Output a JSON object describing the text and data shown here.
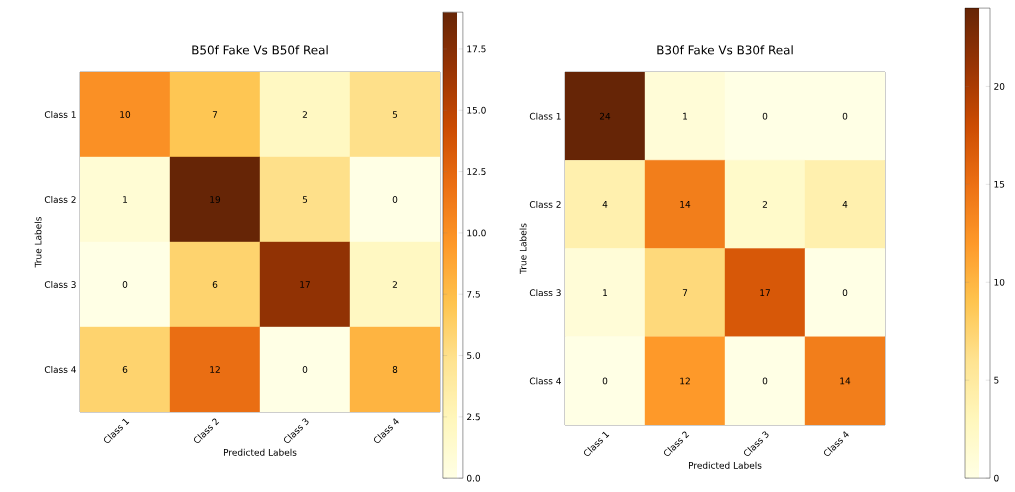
{
  "chart_data": [
    {
      "type": "heatmap",
      "title": "B50f Fake Vs B50f Real",
      "xlabel": "Predicted Labels",
      "ylabel": "True Labels",
      "categories": [
        "Class 1",
        "Class 2",
        "Class 3",
        "Class 4"
      ],
      "y_categories": [
        "Class 1",
        "Class 2",
        "Class 3",
        "Class 4"
      ],
      "cells": [
        [
          10,
          7,
          2,
          5
        ],
        [
          1,
          19,
          5,
          0
        ],
        [
          0,
          6,
          17,
          2
        ],
        [
          6,
          12,
          0,
          8
        ]
      ],
      "data_labels": true,
      "clim": [
        0,
        19
      ],
      "cticks": [
        {
          "value": 0,
          "label": "0.0"
        },
        {
          "value": 2.5,
          "label": "2.5"
        },
        {
          "value": 5,
          "label": "5.0"
        },
        {
          "value": 7.5,
          "label": "7.5"
        },
        {
          "value": 10,
          "label": "10.0"
        },
        {
          "value": 12.5,
          "label": "12.5"
        },
        {
          "value": 15,
          "label": "15.0"
        },
        {
          "value": 17.5,
          "label": "17.5"
        }
      ]
    },
    {
      "type": "heatmap",
      "title": "B30f Fake Vs B30f Real",
      "xlabel": "Predicted Labels",
      "ylabel": "True Labels",
      "categories": [
        "Class 1",
        "Class 2",
        "Class 3",
        "Class 4"
      ],
      "y_categories": [
        "Class 1",
        "Class 2",
        "Class 3",
        "Class 4"
      ],
      "cells": [
        [
          24,
          1,
          0,
          0
        ],
        [
          4,
          14,
          2,
          4
        ],
        [
          1,
          7,
          17,
          0
        ],
        [
          0,
          12,
          0,
          14
        ]
      ],
      "data_labels": true,
      "clim": [
        0,
        24
      ],
      "cticks": [
        0,
        5,
        10,
        15,
        20
      ]
    }
  ]
}
